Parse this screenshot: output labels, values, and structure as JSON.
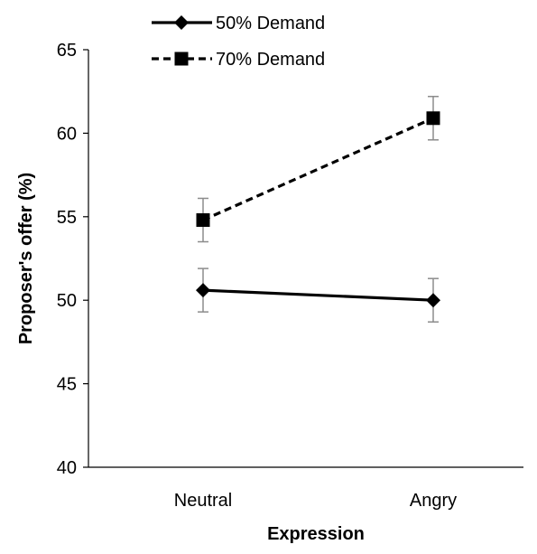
{
  "chart_data": {
    "type": "line",
    "title": "",
    "xlabel": "Expression",
    "ylabel": "Proposer's offer (%)",
    "categories": [
      "Neutral",
      "Angry"
    ],
    "ylim": [
      40,
      65
    ],
    "yticks": [
      40,
      45,
      50,
      55,
      60,
      65
    ],
    "grid": false,
    "legend_position": "top-left",
    "series": [
      {
        "name": "50% Demand",
        "values": [
          50.6,
          50.0
        ],
        "errors": [
          1.3,
          1.3
        ],
        "marker": "diamond",
        "line_style": "solid",
        "color": "#000000"
      },
      {
        "name": "70% Demand",
        "values": [
          54.8,
          60.9
        ],
        "errors": [
          1.3,
          1.3
        ],
        "marker": "square",
        "line_style": "dashed",
        "color": "#000000"
      }
    ]
  },
  "colors": {
    "axis": "#000000",
    "error_bar": "#8c8c8c",
    "background": "#ffffff"
  }
}
